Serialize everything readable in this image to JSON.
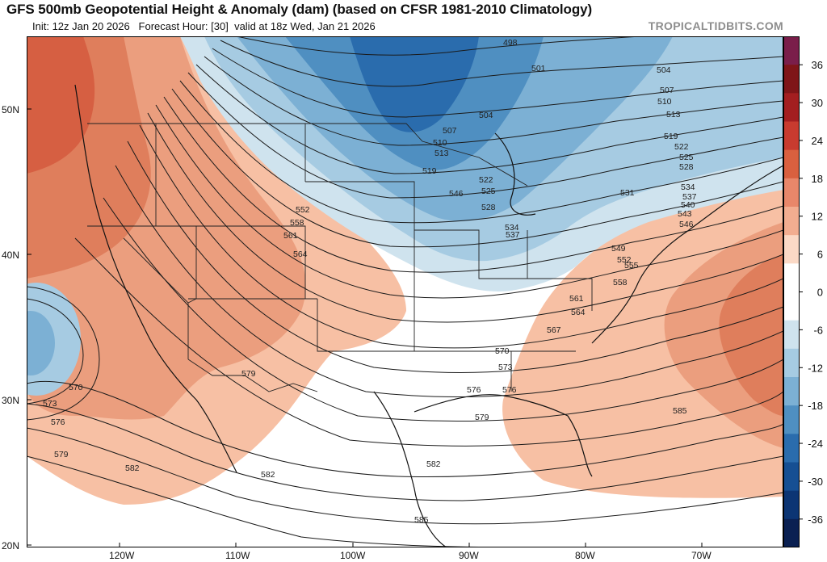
{
  "header": {
    "title": "GFS 500mb Geopotential Height & Anomaly (dam) (based on CFSR 1981-2010 Climatology)",
    "init": "Init: 12z Jan 20 2026",
    "forecast_hour": "Forecast Hour: [30]",
    "valid": "valid at 18z Wed, Jan 21 2026",
    "brand": "TROPICALTIDBITS.COM"
  },
  "map": {
    "lat_labels": [
      "50N",
      "40N",
      "30N",
      "20N"
    ],
    "lon_labels": [
      "120W",
      "110W",
      "100W",
      "90W",
      "80W",
      "70W"
    ]
  },
  "colorbar": {
    "ticks": [
      "36",
      "30",
      "24",
      "18",
      "12",
      "6",
      "0",
      "-6",
      "-12",
      "-18",
      "-24",
      "-30",
      "-36"
    ],
    "colors": [
      "#7a1e4a",
      "#7f1518",
      "#a31e20",
      "#c83b2f",
      "#d9603f",
      "#e8876a",
      "#f2ad90",
      "#fbd9c6",
      "#ffffff",
      "#ffffff",
      "#cfe3ee",
      "#a6cbe2",
      "#7cb0d4",
      "#4f8fc1",
      "#2a6cad",
      "#164f93",
      "#0c3574",
      "#0a2052"
    ]
  },
  "contour_labels": [
    "498",
    "501",
    "504",
    "504",
    "507",
    "507",
    "510",
    "510",
    "513",
    "513",
    "519",
    "519",
    "522",
    "522",
    "525",
    "525",
    "528",
    "528",
    "531",
    "534",
    "534",
    "537",
    "537",
    "540",
    "543",
    "546",
    "546",
    "549",
    "552",
    "552",
    "555",
    "558",
    "558",
    "561",
    "561",
    "564",
    "564",
    "567",
    "570",
    "570",
    "573",
    "573",
    "576",
    "576",
    "576",
    "579",
    "579",
    "579",
    "582",
    "582",
    "582",
    "585",
    "585"
  ]
}
